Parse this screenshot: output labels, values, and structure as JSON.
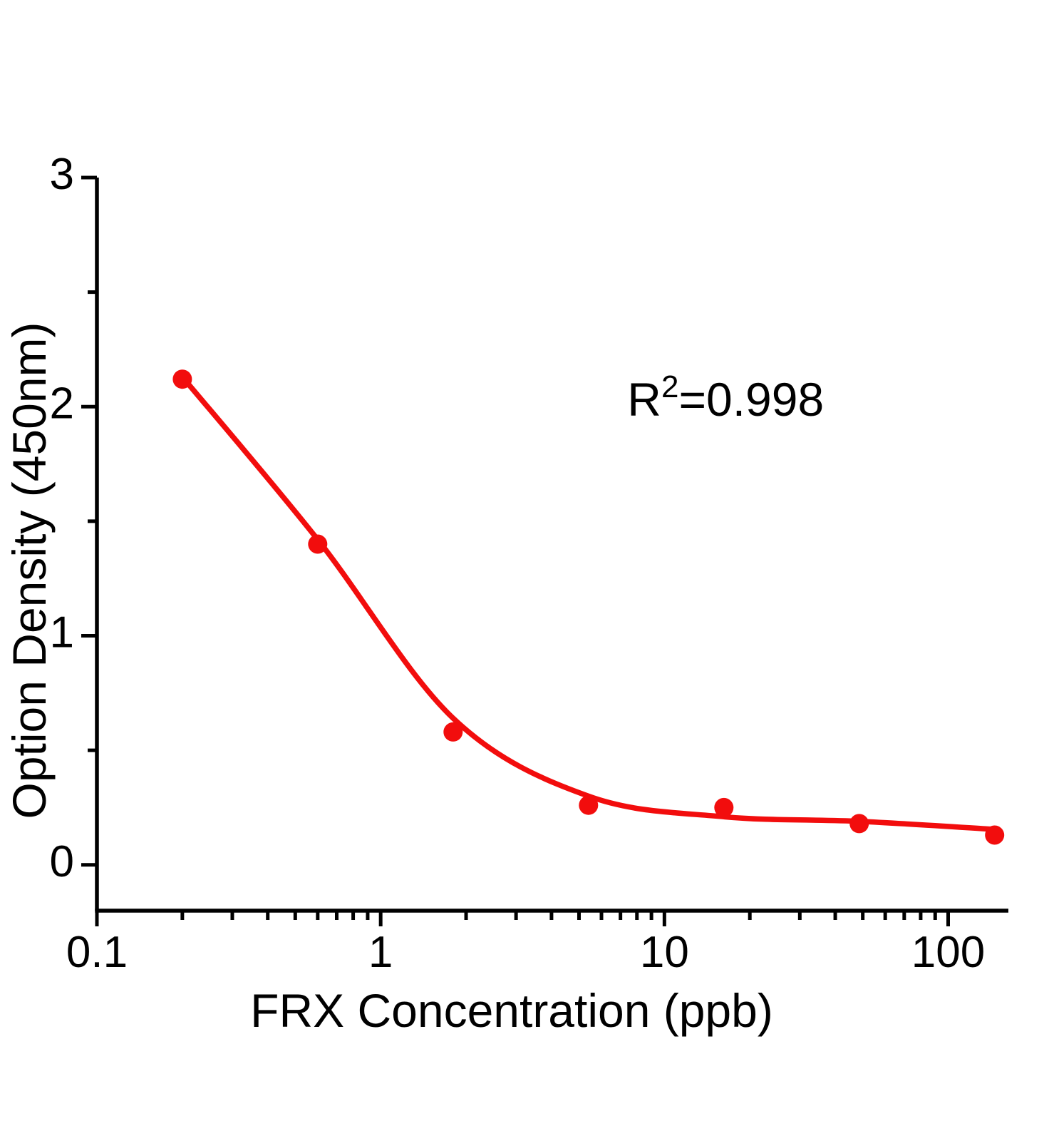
{
  "chart_data": {
    "type": "scatter",
    "title": "",
    "xlabel": "FRX Concentration  (ppb)",
    "ylabel": "Option Density  (450nm)",
    "x_scale": "log",
    "y_scale": "linear",
    "xlim": [
      0.1,
      163
    ],
    "ylim": [
      -0.2,
      3
    ],
    "x_major_ticks": [
      0.1,
      1,
      10,
      100
    ],
    "x_major_tick_labels": [
      "0.1",
      "1",
      "10",
      "100"
    ],
    "y_major_ticks": [
      0,
      1,
      2,
      3
    ],
    "y_major_tick_labels": [
      "0",
      "1",
      "2",
      "3"
    ],
    "y_minor_ticks": [
      0.5,
      1.5,
      2.5
    ],
    "grid": false,
    "legend": "none",
    "background_color": "#ffffff",
    "axis_color": "#000000",
    "accent_color": "#f20d0d",
    "annotation": {
      "text": "R²=0.998",
      "base": "R",
      "sup": "2",
      "rest": "=0.998",
      "x": 7.4,
      "y": 1.96
    },
    "series": [
      {
        "name": "standard-points",
        "type": "scatter",
        "color": "#f20d0d",
        "marker": "circle",
        "points": [
          [
            0.2,
            2.12
          ],
          [
            0.6,
            1.4
          ],
          [
            1.8,
            0.58
          ],
          [
            5.4,
            0.26
          ],
          [
            16.2,
            0.25
          ],
          [
            48.6,
            0.18
          ],
          [
            145.8,
            0.13
          ]
        ]
      },
      {
        "name": "fit-curve",
        "type": "line",
        "color": "#f20d0d",
        "points": [
          [
            0.2,
            2.13
          ],
          [
            0.6,
            1.42
          ],
          [
            1.8,
            0.64
          ],
          [
            5.4,
            0.3
          ],
          [
            16.2,
            0.21
          ],
          [
            48.6,
            0.19
          ],
          [
            145.8,
            0.155
          ]
        ]
      }
    ]
  }
}
